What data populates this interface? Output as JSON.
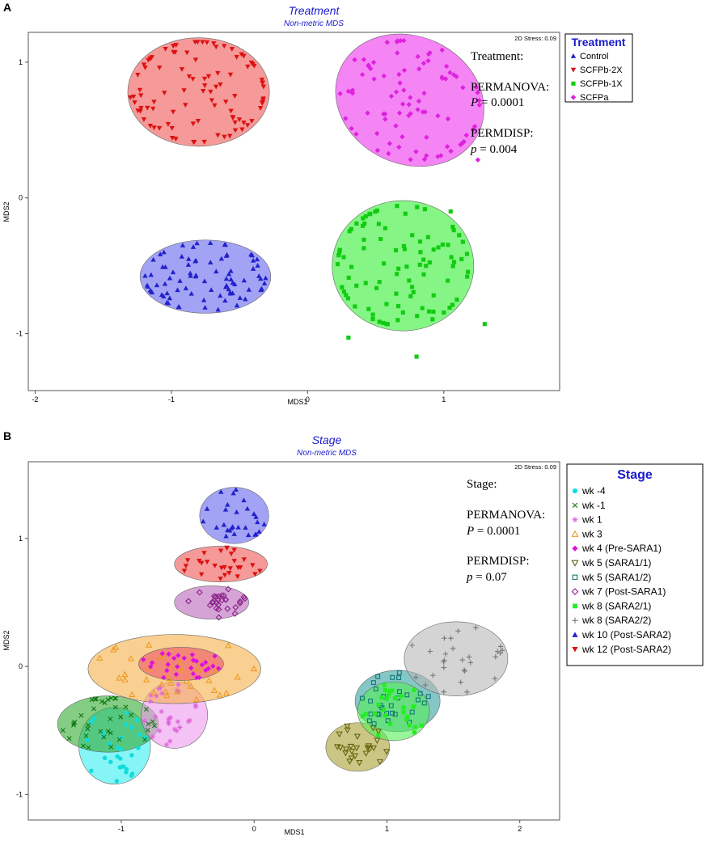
{
  "panels": [
    {
      "letter": "A",
      "title": "Treatment",
      "subtitle": "Non-metric MDS",
      "stress": "2D Stress: 0.09",
      "xlabel": "MDS1",
      "ylabel": "MDS2",
      "xlim": [
        -2.05,
        1.85
      ],
      "ylim": [
        -1.42,
        1.22
      ],
      "xticks": [
        -2,
        -1,
        0,
        1
      ],
      "yticks": [
        -1,
        0,
        1
      ],
      "annotation": {
        "heading": "Treatment:",
        "test1": "PERMANOVA:",
        "stat1_sym": "P",
        "stat1_val": " = 0.0001",
        "test2": "PERMDISP:",
        "stat2_sym": "p",
        "stat2_val": " = 0.004"
      },
      "legend": {
        "title": "Treatment",
        "items": [
          {
            "label": "Control",
            "marker": "triangle-up",
            "color": "#2222cc"
          },
          {
            "label": "SCFPb-2X",
            "marker": "triangle-down",
            "color": "#dd1111"
          },
          {
            "label": "SCFPb-1X",
            "marker": "square",
            "color": "#11cc11"
          },
          {
            "label": "SCFPa",
            "marker": "diamond",
            "color": "#dd22dd"
          }
        ]
      }
    },
    {
      "letter": "B",
      "title": "Stage",
      "subtitle": "Non-metric MDS",
      "stress": "2D Stress: 0.09",
      "xlabel": "MDS1",
      "ylabel": "MDS2",
      "xlim": [
        -1.7,
        2.3
      ],
      "ylim": [
        -1.2,
        1.6
      ],
      "xticks": [
        -1,
        0,
        1,
        2
      ],
      "yticks": [
        -1,
        0,
        1
      ],
      "annotation": {
        "heading": "Stage:",
        "test1": "PERMANOVA:",
        "stat1_sym": "P",
        "stat1_val": " = 0.0001",
        "test2": "PERMDISP:",
        "stat2_sym": "p",
        "stat2_val": " = 0.07"
      },
      "legend": {
        "title": "Stage",
        "items": [
          {
            "label": "wk -4",
            "marker": "circle",
            "color": "#11dddd"
          },
          {
            "label": "wk -1",
            "marker": "x",
            "color": "#117711"
          },
          {
            "label": "wk 1",
            "marker": "asterisk",
            "color": "#dd66dd"
          },
          {
            "label": "wk 3",
            "marker": "triangle-open",
            "color": "#ee9922"
          },
          {
            "label": "wk 4 (Pre-SARA1)",
            "marker": "diamond",
            "color": "#dd11dd"
          },
          {
            "label": "wk 5 (SARA1/1)",
            "marker": "triangle-down-open",
            "color": "#666611"
          },
          {
            "label": "wk 5 (SARA1/2)",
            "marker": "square-open",
            "color": "#117777"
          },
          {
            "label": "wk 7 (Post-SARA1)",
            "marker": "diamond-open",
            "color": "#882288"
          },
          {
            "label": "wk 8 (SARA2/1)",
            "marker": "square",
            "color": "#22ee22"
          },
          {
            "label": "wk 8 (SARA2/2)",
            "marker": "plus",
            "color": "#777777"
          },
          {
            "label": "wk 10 (Post-SARA2)",
            "marker": "triangle-up",
            "color": "#2222cc"
          },
          {
            "label": "wk 12 (Post-SARA2)",
            "marker": "triangle-down",
            "color": "#dd1111"
          }
        ]
      }
    }
  ],
  "chart_data": [
    {
      "type": "scatter",
      "title": "Treatment",
      "subtitle": "Non-metric MDS",
      "xlabel": "MDS1",
      "ylabel": "MDS2",
      "xlim": [
        -2.05,
        1.85
      ],
      "ylim": [
        -1.42,
        1.22
      ],
      "groups": [
        {
          "name": "Control",
          "color": "#2222cc",
          "marker": "triangle-up",
          "fill": "#6666ee",
          "ellipse": {
            "cx": -0.75,
            "cy": -0.58,
            "rx": 0.48,
            "ry": 0.27
          },
          "n": 85,
          "spread": [
            0.32,
            0.17
          ],
          "seed": 11
        },
        {
          "name": "SCFPb-2X",
          "color": "#dd1111",
          "marker": "triangle-down",
          "fill": "#ee5555",
          "ellipse": {
            "cx": -0.8,
            "cy": 0.78,
            "rx": 0.52,
            "ry": 0.4
          },
          "n": 95,
          "spread": [
            0.34,
            0.25
          ],
          "seed": 23
        },
        {
          "name": "SCFPb-1X",
          "color": "#11cc11",
          "marker": "square",
          "fill": "#33ee33",
          "ellipse": {
            "cx": 0.7,
            "cy": -0.5,
            "rx": 0.52,
            "ry": 0.48
          },
          "n": 95,
          "spread": [
            0.33,
            0.3
          ],
          "seed": 37
        },
        {
          "name": "SCFPa",
          "color": "#dd22dd",
          "marker": "diamond",
          "fill": "#ee33ee",
          "ellipse": {
            "cx": 0.75,
            "cy": 0.72,
            "rx": 0.56,
            "ry": 0.47,
            "rot": 25
          },
          "n": 90,
          "spread": [
            0.36,
            0.28
          ],
          "seed": 51
        }
      ],
      "extra_points": [
        {
          "group": "SCFPb-2X",
          "x": -1.3,
          "y": 0.74
        },
        {
          "group": "SCFPb-1X",
          "x": 0.3,
          "y": -1.03
        },
        {
          "group": "SCFPb-1X",
          "x": 0.8,
          "y": -1.17
        },
        {
          "group": "SCFPb-1X",
          "x": 1.3,
          "y": -0.93
        },
        {
          "group": "SCFPb-1X",
          "x": 1.05,
          "y": -0.1
        },
        {
          "group": "SCFPa",
          "x": 1.25,
          "y": 0.28
        }
      ]
    },
    {
      "type": "scatter",
      "title": "Stage",
      "subtitle": "Non-metric MDS",
      "xlabel": "MDS1",
      "ylabel": "MDS2",
      "xlim": [
        -1.7,
        2.3
      ],
      "ylim": [
        -1.2,
        1.6
      ],
      "groups": [
        {
          "name": "wk -4",
          "color": "#11dddd",
          "marker": "circle",
          "fill": "#33eeee",
          "ellipse": {
            "cx": -1.05,
            "cy": -0.62,
            "rx": 0.27,
            "ry": 0.3
          },
          "n": 30,
          "spread": [
            0.14,
            0.18
          ],
          "seed": 61
        },
        {
          "name": "wk -1",
          "color": "#117711",
          "marker": "x",
          "fill": "#33aa33",
          "ellipse": {
            "cx": -1.1,
            "cy": -0.45,
            "rx": 0.38,
            "ry": 0.22
          },
          "n": 38,
          "spread": [
            0.2,
            0.13
          ],
          "seed": 67
        },
        {
          "name": "wk 1",
          "color": "#dd66dd",
          "marker": "asterisk",
          "fill": "#ee99ee",
          "ellipse": {
            "cx": -0.6,
            "cy": -0.38,
            "rx": 0.25,
            "ry": 0.26
          },
          "n": 28,
          "spread": [
            0.14,
            0.15
          ],
          "seed": 71
        },
        {
          "name": "wk 3",
          "color": "#ee9922",
          "marker": "triangle-open",
          "fill": "#f5b04a",
          "ellipse": {
            "cx": -0.6,
            "cy": -0.02,
            "rx": 0.65,
            "ry": 0.27
          },
          "n": 35,
          "spread": [
            0.36,
            0.14
          ],
          "seed": 73
        },
        {
          "name": "wk 4 (Pre-SARA1)",
          "color": "#dd11dd",
          "marker": "diamond",
          "fill": "#ee5566",
          "ellipse": {
            "cx": -0.55,
            "cy": 0.02,
            "rx": 0.32,
            "ry": 0.13
          },
          "n": 28,
          "spread": [
            0.15,
            0.06
          ],
          "seed": 79
        },
        {
          "name": "wk 5 (SARA1/1)",
          "color": "#666611",
          "marker": "triangle-down-open",
          "fill": "#a8a030",
          "ellipse": {
            "cx": 0.78,
            "cy": -0.63,
            "rx": 0.24,
            "ry": 0.19
          },
          "n": 25,
          "spread": [
            0.13,
            0.1
          ],
          "seed": 83
        },
        {
          "name": "wk 5 (SARA1/2)",
          "color": "#117777",
          "marker": "square-open",
          "fill": "#33a0a0",
          "ellipse": {
            "cx": 1.08,
            "cy": -0.27,
            "rx": 0.32,
            "ry": 0.24
          },
          "n": 30,
          "spread": [
            0.17,
            0.13
          ],
          "seed": 89
        },
        {
          "name": "wk 7 (Post-SARA1)",
          "color": "#882288",
          "marker": "diamond-open",
          "fill": "#bb66bb",
          "ellipse": {
            "cx": -0.32,
            "cy": 0.5,
            "rx": 0.28,
            "ry": 0.13
          },
          "n": 28,
          "spread": [
            0.15,
            0.06
          ],
          "seed": 97
        },
        {
          "name": "wk 8 (SARA2/1)",
          "color": "#22ee22",
          "marker": "square",
          "fill": "#55ee55",
          "ellipse": {
            "cx": 1.05,
            "cy": -0.35,
            "rx": 0.27,
            "ry": 0.23
          },
          "n": 28,
          "spread": [
            0.14,
            0.12
          ],
          "seed": 101
        },
        {
          "name": "wk 8 (SARA2/2)",
          "color": "#777777",
          "marker": "plus",
          "fill": "#b8b8b8",
          "ellipse": {
            "cx": 1.52,
            "cy": 0.06,
            "rx": 0.39,
            "ry": 0.29
          },
          "n": 28,
          "spread": [
            0.21,
            0.15
          ],
          "seed": 103
        },
        {
          "name": "wk 10 (Post-SARA2)",
          "color": "#2222cc",
          "marker": "triangle-up",
          "fill": "#6666ee",
          "ellipse": {
            "cx": -0.15,
            "cy": 1.18,
            "rx": 0.26,
            "ry": 0.22
          },
          "n": 28,
          "spread": [
            0.13,
            0.12
          ],
          "seed": 107
        },
        {
          "name": "wk 12 (Post-SARA2)",
          "color": "#dd1111",
          "marker": "triangle-down",
          "fill": "#ee5555",
          "ellipse": {
            "cx": -0.25,
            "cy": 0.8,
            "rx": 0.35,
            "ry": 0.14
          },
          "n": 28,
          "spread": [
            0.18,
            0.07
          ],
          "seed": 109
        }
      ],
      "extra_points": []
    }
  ]
}
